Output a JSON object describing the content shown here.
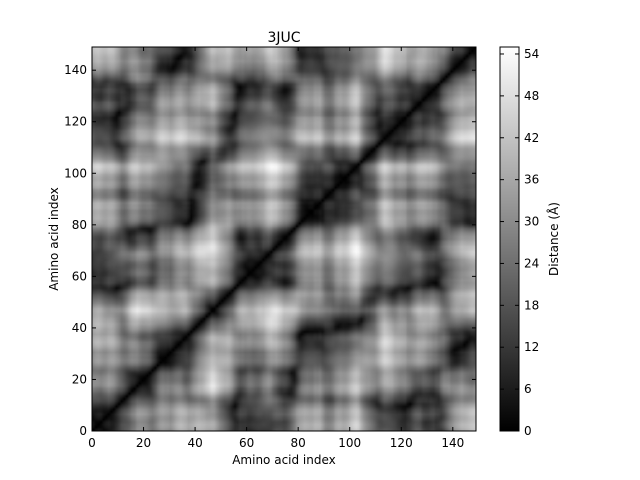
{
  "chart_data": {
    "type": "heatmap",
    "title": "3JUC",
    "xlabel": "Amino acid index",
    "ylabel": "Amino acid index",
    "colorbar_label": "Distance (Å)",
    "n_residues": 149,
    "xlim": [
      0,
      149
    ],
    "ylim": [
      0,
      149
    ],
    "x_ticks": [
      0,
      20,
      40,
      60,
      80,
      100,
      120,
      140
    ],
    "y_ticks": [
      0,
      20,
      40,
      60,
      80,
      100,
      120,
      140
    ],
    "color_range": [
      0,
      55
    ],
    "colorbar_ticks": [
      0,
      6,
      12,
      18,
      24,
      30,
      36,
      42,
      48,
      54
    ],
    "colormap": "gray",
    "colormap_low": "#000000",
    "colormap_high": "#ffffff",
    "grid": false,
    "description_of_matrix": "Symmetric pairwise C-alpha distance matrix; diagonal is 0 Å; brightest bands near indices 47 and 104 (~50–55 Å) and at index ~104 against 130–149."
  }
}
